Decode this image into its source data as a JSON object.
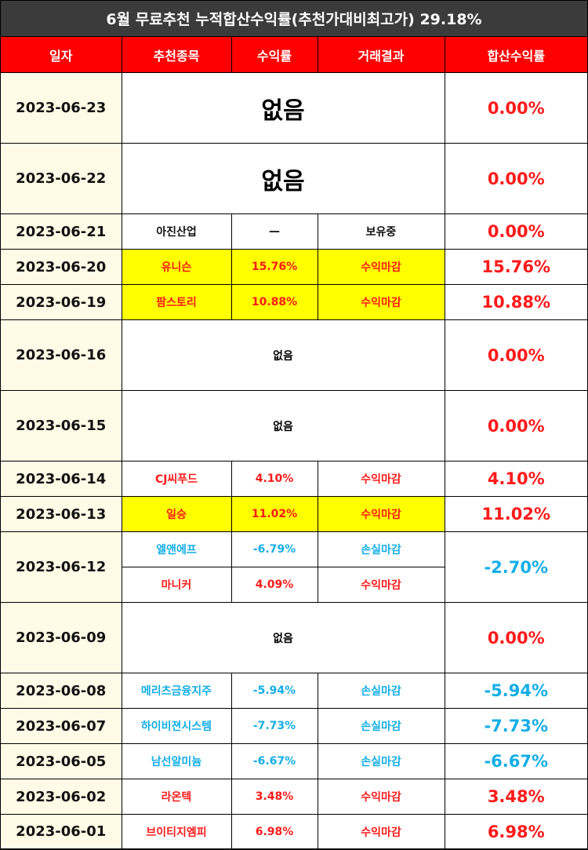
{
  "title": "6월 무료추천 누적합산수익률(추천가대비최고가) 29.18%",
  "headers": [
    "일자",
    "추천종목",
    "수익률",
    "거래결과",
    "합산수익률"
  ],
  "none_label": "없음",
  "colors": {
    "header": "#ff0000",
    "title_bg": "#3b3b3b",
    "highlight": "#ffff00",
    "positive": "#ff1a1a",
    "negative": "#13aee6",
    "date_bg": "#fffbe6"
  },
  "rows": [
    {
      "date": "2023-06-23",
      "total": "0.00%"
    },
    {
      "date": "2023-06-22",
      "total": "0.00%"
    },
    {
      "date": "2023-06-21",
      "stock": "아진산업",
      "rate": "—",
      "result": "보유중",
      "total": "0.00%"
    },
    {
      "date": "2023-06-20",
      "stock": "유니슨",
      "rate": "15.76%",
      "result": "수익마감",
      "total": "15.76%"
    },
    {
      "date": "2023-06-19",
      "stock": "팜스토리",
      "rate": "10.88%",
      "result": "수익마감",
      "total": "10.88%"
    },
    {
      "date": "2023-06-16",
      "total": "0.00%"
    },
    {
      "date": "2023-06-15",
      "total": "0.00%"
    },
    {
      "date": "2023-06-14",
      "stock": "CJ씨푸드",
      "rate": "4.10%",
      "result": "수익마감",
      "total": "4.10%"
    },
    {
      "date": "2023-06-13",
      "stock": "일승",
      "rate": "11.02%",
      "result": "수익마감",
      "total": "11.02%"
    },
    {
      "date": "2023-06-12",
      "stock": "엘앤에프",
      "rate": "-6.79%",
      "result": "손실마감",
      "total": "-2.70%",
      "stock2": "마니커",
      "rate2": "4.09%",
      "result2": "수익마감"
    },
    {
      "date": "2023-06-09",
      "total": "0.00%"
    },
    {
      "date": "2023-06-08",
      "stock": "메리츠금융지주",
      "rate": "-5.94%",
      "result": "손실마감",
      "total": "-5.94%"
    },
    {
      "date": "2023-06-07",
      "stock": "하이비젼시스템",
      "rate": "-7.73%",
      "result": "손실마감",
      "total": "-7.73%"
    },
    {
      "date": "2023-06-05",
      "stock": "남선알미늄",
      "rate": "-6.67%",
      "result": "손실마감",
      "total": "-6.67%"
    },
    {
      "date": "2023-06-02",
      "stock": "라온텍",
      "rate": "3.48%",
      "result": "수익마감",
      "total": "3.48%"
    },
    {
      "date": "2023-06-01",
      "stock": "브이티지엠피",
      "rate": "6.98%",
      "result": "수익마감",
      "total": "6.98%"
    }
  ]
}
